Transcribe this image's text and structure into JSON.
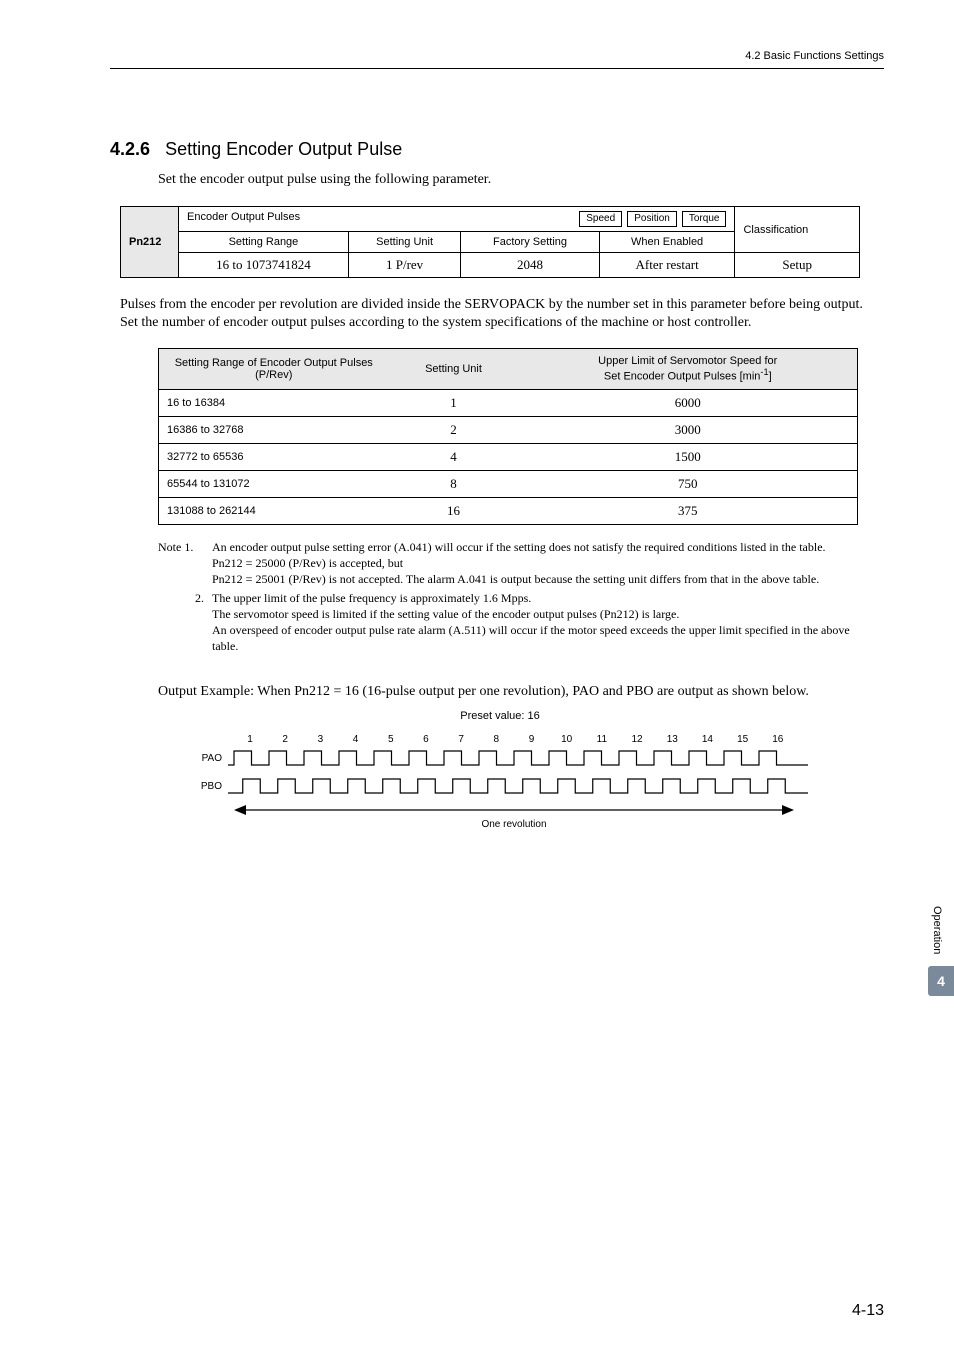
{
  "header": {
    "section_ref": "4.2  Basic Functions Settings"
  },
  "section": {
    "number": "4.2.6",
    "title": "Setting Encoder Output Pulse"
  },
  "intro": "Set the encoder output pulse using the following parameter.",
  "param": {
    "pn": "Pn212",
    "title": "Encoder Output Pulses",
    "tags": [
      "Speed",
      "Position",
      "Torque"
    ],
    "classification": "Classification",
    "headers": [
      "Setting Range",
      "Setting Unit",
      "Factory Setting",
      "When Enabled"
    ],
    "row": {
      "range": "16 to 1073741824",
      "unit": "1 P/rev",
      "factory": "2048",
      "when": "After restart",
      "class": "Setup"
    }
  },
  "para1": "Pulses from the encoder per revolution are divided inside the SERVOPACK by the number set in this parameter before being output. Set the number of encoder output pulses according to the system specifications of the machine or host controller.",
  "range_table": {
    "headers": {
      "c1": "Setting Range of Encoder Output Pulses (P/Rev)",
      "c2": "Setting Unit",
      "c3a": "Upper Limit of Servomotor Speed for",
      "c3b": "Set Encoder Output Pulses [min",
      "c3sup": "-1",
      "c3end": "]"
    },
    "rows": [
      {
        "r": "16 to 16384",
        "u": "1",
        "s": "6000"
      },
      {
        "r": "16386 to 32768",
        "u": "2",
        "s": "3000"
      },
      {
        "r": "32772 to 65536",
        "u": "4",
        "s": "1500"
      },
      {
        "r": "65544 to 131072",
        "u": "8",
        "s": "750"
      },
      {
        "r": "131088 to 262144",
        "u": "16",
        "s": "375"
      }
    ]
  },
  "notes": {
    "n1_label": "Note 1.",
    "n1": "An encoder output pulse setting error (A.041) will occur if the setting does not satisfy the required conditions listed in the table.",
    "n1b": "Pn212 = 25000 (P/Rev) is accepted, but",
    "n1c": "Pn212 = 25001 (P/Rev) is not accepted.  The alarm A.041 is output because the setting unit differs from that in the above table.",
    "n2_label": "2.",
    "n2": "The upper limit of the pulse frequency is approximately 1.6 Mpps.",
    "n2b": "The servomotor speed is limited if the setting value of the encoder output pulses (Pn212) is large.",
    "n2c": "An overspeed of encoder output pulse rate alarm (A.511) will occur if the motor speed exceeds the upper limit specified in the above table."
  },
  "output_example": {
    "lead": "Output Example: ",
    "text": "When Pn212 = 16 (16-pulse output per one revolution), PAO and PBO are output as shown below.",
    "preset": "Preset value: 16",
    "nums": [
      "1",
      "2",
      "3",
      "4",
      "5",
      "6",
      "7",
      "8",
      "9",
      "10",
      "11",
      "12",
      "13",
      "14",
      "15",
      "16"
    ],
    "pao": "PAO",
    "pbo": "PBO",
    "rev": "One revolution"
  },
  "side": {
    "operation": "Operation",
    "chapter": "4"
  },
  "footer": "4-13",
  "colors": {
    "grey_bg": "#e8e8e8",
    "tab_bg": "#7b8a9a"
  }
}
